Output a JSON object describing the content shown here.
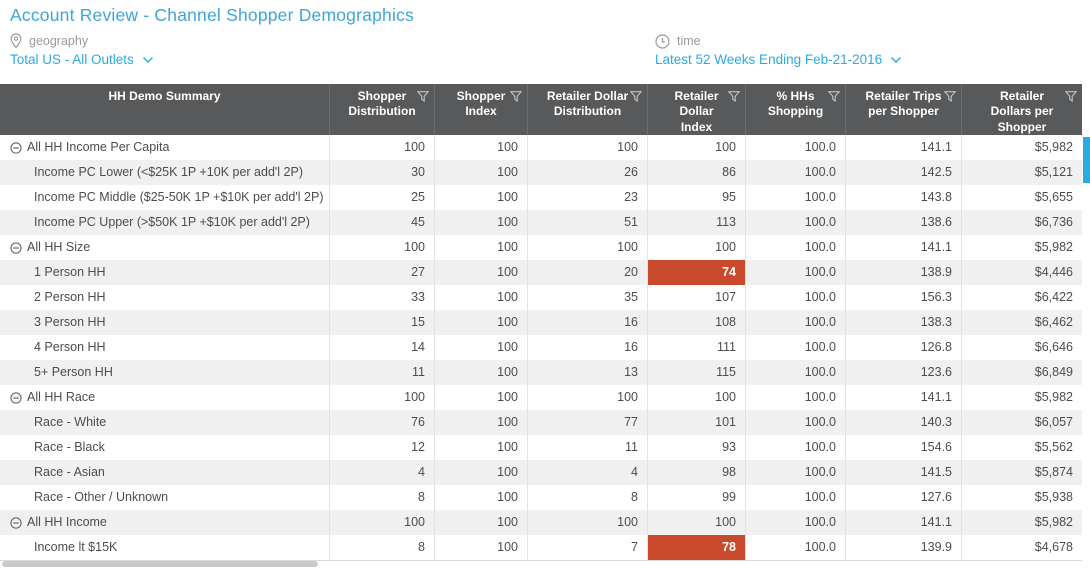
{
  "page": {
    "title": "Account Review - Channel Shopper Demographics"
  },
  "filters": {
    "geography": {
      "icon": "location-pin",
      "label": "geography",
      "value": "Total US - All Outlets"
    },
    "time": {
      "icon": "clock",
      "label": "time",
      "value": "Latest 52 Weeks Ending Feb-21-2016"
    }
  },
  "table": {
    "columns": [
      {
        "key": "hh_demo_summary",
        "label": "HH Demo Summary",
        "filter_icon": false
      },
      {
        "key": "shopper_distribution",
        "label": "Shopper Distribution",
        "filter_icon": true
      },
      {
        "key": "shopper_index",
        "label": "Shopper Index",
        "filter_icon": true
      },
      {
        "key": "retailer_dollar_distribution",
        "label": "Retailer Dollar Distribution",
        "filter_icon": true
      },
      {
        "key": "retailer_dollar_index",
        "label": "Retailer Dollar Index",
        "filter_icon": true
      },
      {
        "key": "pct_hhs_shopping",
        "label": "% HHs Shopping",
        "filter_icon": true
      },
      {
        "key": "retailer_trips_per_shopper",
        "label": "Retailer Trips per Shopper",
        "filter_icon": true
      },
      {
        "key": "retailer_dollars_per_shopper",
        "label": "Retailer Dollars per Shopper",
        "filter_icon": true
      }
    ],
    "rows": [
      {
        "label": "All HH Income Per Capita",
        "group": true,
        "values": [
          "100",
          "100",
          "100",
          "100",
          "100.0",
          "141.1",
          "$5,982"
        ]
      },
      {
        "label": "Income PC Lower (<$25K 1P +10K per add'l 2P)",
        "group": false,
        "values": [
          "30",
          "100",
          "26",
          "86",
          "100.0",
          "142.5",
          "$5,121"
        ]
      },
      {
        "label": "Income PC Middle ($25-50K 1P +$10K per add'l 2P)",
        "group": false,
        "values": [
          "25",
          "100",
          "23",
          "95",
          "100.0",
          "143.8",
          "$5,655"
        ]
      },
      {
        "label": "Income PC Upper (>$50K 1P +$10K per add'l 2P)",
        "group": false,
        "values": [
          "45",
          "100",
          "51",
          "113",
          "100.0",
          "138.6",
          "$6,736"
        ]
      },
      {
        "label": "All HH Size",
        "group": true,
        "values": [
          "100",
          "100",
          "100",
          "100",
          "100.0",
          "141.1",
          "$5,982"
        ]
      },
      {
        "label": "1 Person HH",
        "group": false,
        "values": [
          "27",
          "100",
          "20",
          "74",
          "100.0",
          "138.9",
          "$4,446"
        ],
        "highlight_col": 3
      },
      {
        "label": "2 Person HH",
        "group": false,
        "values": [
          "33",
          "100",
          "35",
          "107",
          "100.0",
          "156.3",
          "$6,422"
        ]
      },
      {
        "label": "3 Person HH",
        "group": false,
        "values": [
          "15",
          "100",
          "16",
          "108",
          "100.0",
          "138.3",
          "$6,462"
        ]
      },
      {
        "label": "4 Person HH",
        "group": false,
        "values": [
          "14",
          "100",
          "16",
          "111",
          "100.0",
          "126.8",
          "$6,646"
        ]
      },
      {
        "label": "5+ Person HH",
        "group": false,
        "values": [
          "11",
          "100",
          "13",
          "115",
          "100.0",
          "123.6",
          "$6,849"
        ]
      },
      {
        "label": "All HH Race",
        "group": true,
        "values": [
          "100",
          "100",
          "100",
          "100",
          "100.0",
          "141.1",
          "$5,982"
        ]
      },
      {
        "label": "Race - White",
        "group": false,
        "values": [
          "76",
          "100",
          "77",
          "101",
          "100.0",
          "140.3",
          "$6,057"
        ]
      },
      {
        "label": "Race - Black",
        "group": false,
        "values": [
          "12",
          "100",
          "11",
          "93",
          "100.0",
          "154.6",
          "$5,562"
        ]
      },
      {
        "label": "Race - Asian",
        "group": false,
        "values": [
          "4",
          "100",
          "4",
          "98",
          "100.0",
          "141.5",
          "$5,874"
        ]
      },
      {
        "label": "Race - Other / Unknown",
        "group": false,
        "values": [
          "8",
          "100",
          "8",
          "99",
          "100.0",
          "127.6",
          "$5,938"
        ]
      },
      {
        "label": "All HH Income",
        "group": true,
        "values": [
          "100",
          "100",
          "100",
          "100",
          "100.0",
          "141.1",
          "$5,982"
        ]
      },
      {
        "label": "Income lt $15K",
        "group": false,
        "values": [
          "8",
          "100",
          "7",
          "78",
          "100.0",
          "139.9",
          "$4,678"
        ],
        "highlight_col": 3
      }
    ]
  },
  "colors": {
    "title": "#3FA5D8",
    "link_blue": "#29ABE2",
    "label_gray": "#9A9A9A",
    "header_bg": "#58595B",
    "header_text": "#FFFFFF",
    "row_alt_bg": "#F0F0F0",
    "body_text": "#4D4D4D",
    "highlight_bg": "#C9492C",
    "highlight_text": "#FFFFFF",
    "vscroll_thumb": "#29ABE2",
    "hscroll_thumb": "#C9C9C9"
  }
}
